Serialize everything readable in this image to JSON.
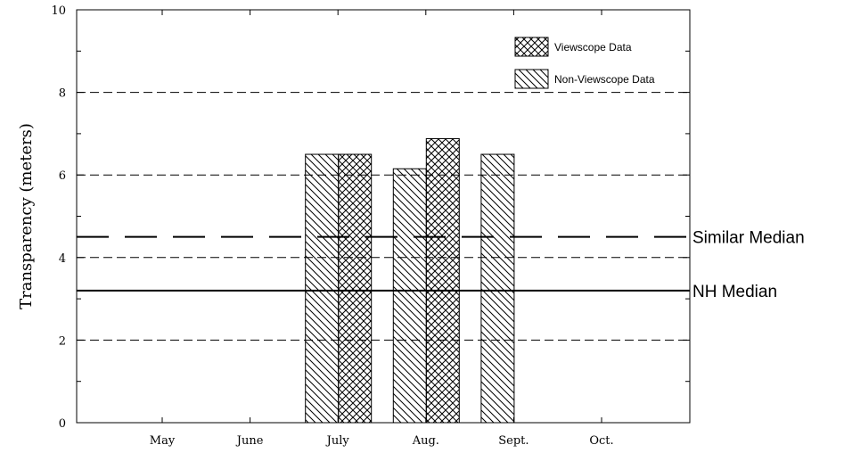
{
  "chart_data": {
    "type": "bar",
    "ylabel": "Transparency (meters)",
    "ylim": [
      0,
      10
    ],
    "yticks": [
      "0",
      "2",
      "4",
      "6",
      "8",
      "10"
    ],
    "categories": [
      "May",
      "June",
      "July",
      "Aug.",
      "Sept.",
      "Oct."
    ],
    "series": [
      {
        "name": "Non-Viewscope Data",
        "pattern": "diagonal-hatch",
        "values": [
          null,
          null,
          6.5,
          6.15,
          6.5,
          null
        ]
      },
      {
        "name": "Viewscope Data",
        "pattern": "cross-hatch",
        "values": [
          null,
          null,
          6.5,
          6.88,
          null,
          null
        ]
      }
    ],
    "reference_lines": [
      {
        "label": "Similar Median",
        "value": 4.5,
        "style": "long-dash"
      },
      {
        "label": "NH Median",
        "value": 3.2,
        "style": "solid"
      }
    ],
    "grid": {
      "horizontal_dashed_at": [
        2,
        4,
        6,
        8
      ]
    },
    "legend_placement": "top-right"
  }
}
